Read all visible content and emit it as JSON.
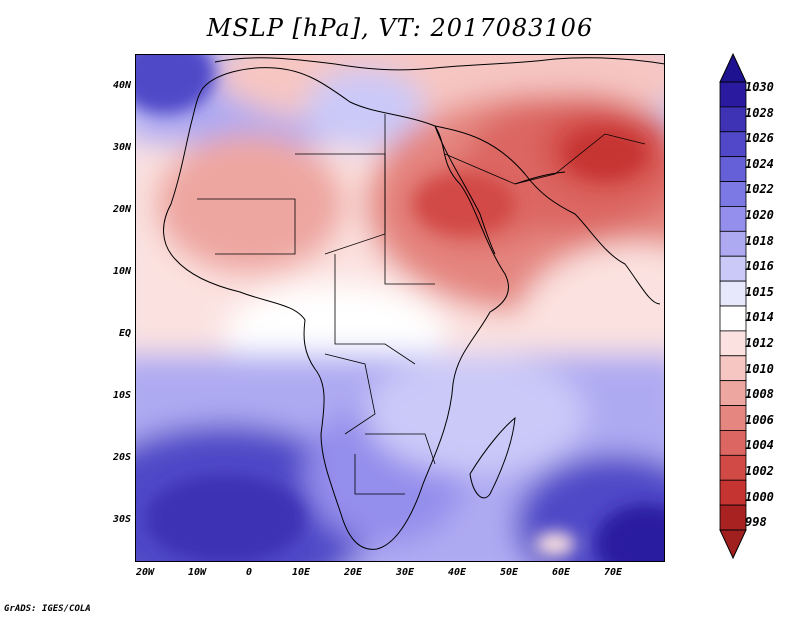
{
  "title": "MSLP [hPa], VT: 2017083106",
  "footer": "GrADS: IGES/COLA",
  "map": {
    "region": "Africa and Middle East",
    "lon_range": [
      -22,
      80
    ],
    "lat_range": [
      -37,
      45
    ],
    "y_ticks": [
      "40N",
      "30N",
      "20N",
      "10N",
      "EQ",
      "10S",
      "20S",
      "30S"
    ],
    "x_ticks": [
      "20W",
      "10W",
      "0",
      "10E",
      "20E",
      "30E",
      "40E",
      "50E",
      "60E",
      "70E"
    ]
  },
  "colorbar": {
    "levels": [
      "1030",
      "1028",
      "1026",
      "1024",
      "1022",
      "1020",
      "1018",
      "1016",
      "1015",
      "1014",
      "1012",
      "1010",
      "1008",
      "1006",
      "1004",
      "1002",
      "1000",
      "998"
    ],
    "colors": [
      "#2a1aa0",
      "#3d33b4",
      "#5048c8",
      "#6660d8",
      "#7c78e4",
      "#948eec",
      "#aeaaf2",
      "#cbc9f8",
      "#e8e8fc",
      "#ffffff",
      "#fbe2e0",
      "#f6c6c2",
      "#eea6a0",
      "#e58680",
      "#dc6662",
      "#d24a46",
      "#c63432",
      "#a82222"
    ]
  },
  "colors": {
    "high": "#2a1aa0",
    "neutral": "#ffffff",
    "low": "#a82222"
  }
}
